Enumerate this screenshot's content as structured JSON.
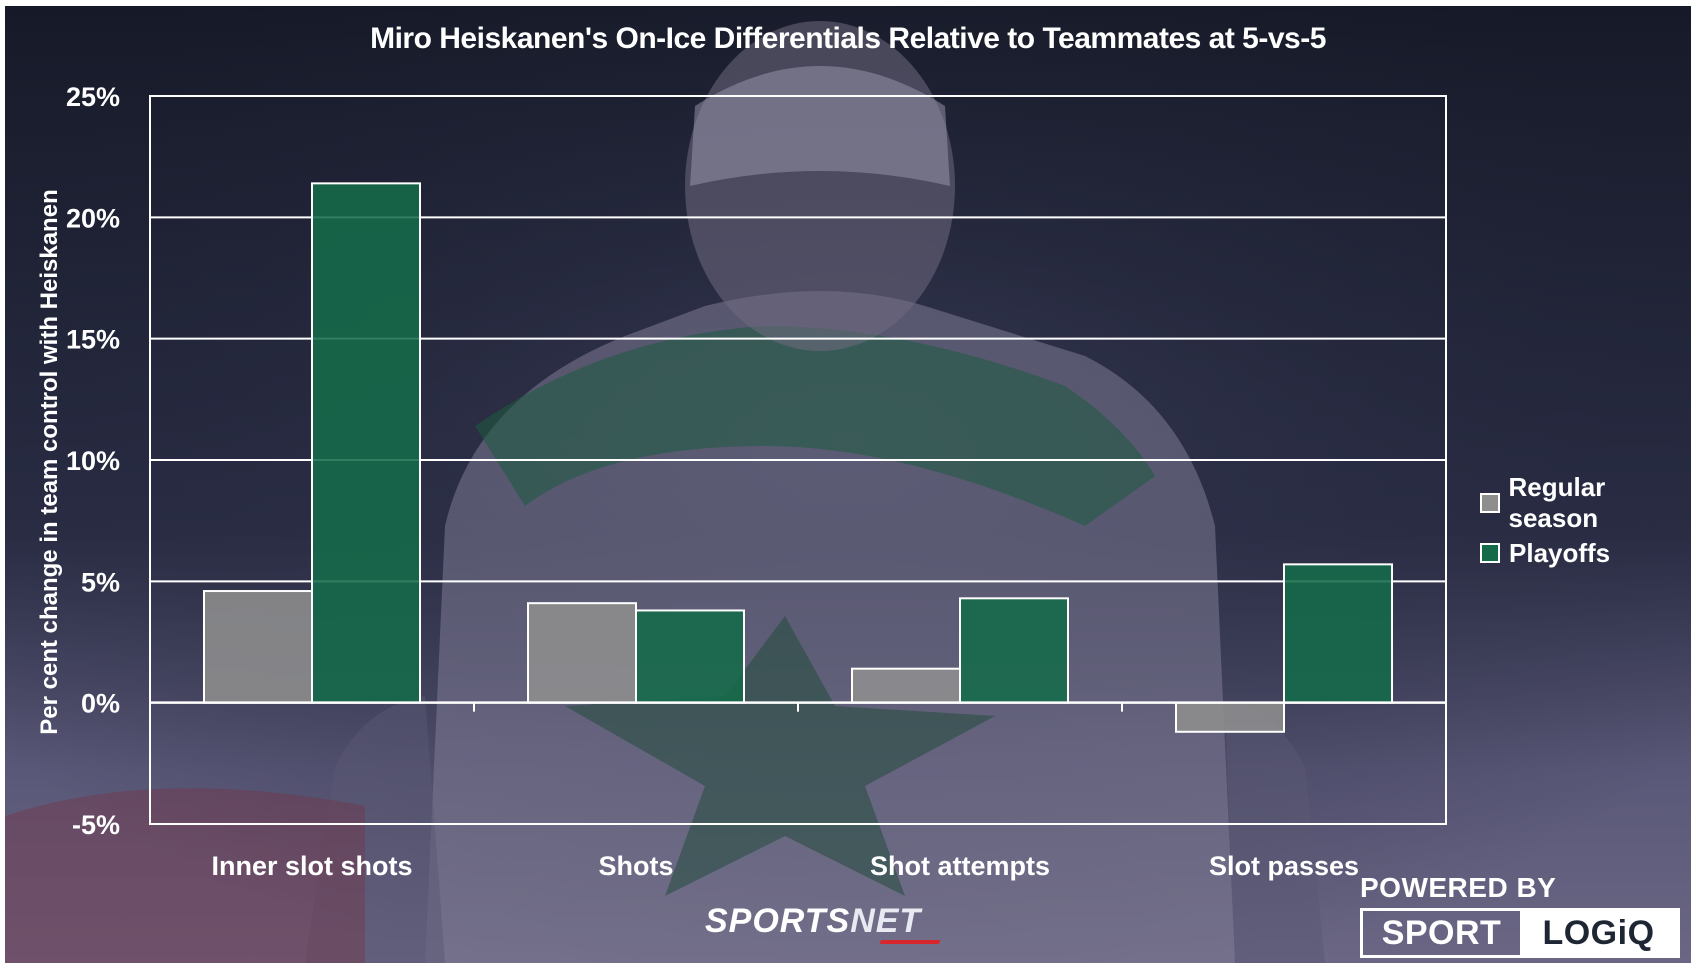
{
  "chart_data": {
    "type": "bar",
    "title": "Miro Heiskanen's On-Ice Differentials Relative to Teammates at 5-vs-5",
    "xlabel": "",
    "ylabel": "Per cent change in team control with Heiskanen",
    "categories": [
      "Inner slot shots",
      "Shots",
      "Shot attempts",
      "Slot passes"
    ],
    "series": [
      {
        "name": "Regular season",
        "values": [
          4.6,
          4.1,
          1.4,
          -1.2
        ]
      },
      {
        "name": "Playoffs",
        "values": [
          21.4,
          3.8,
          4.3,
          5.7
        ]
      }
    ],
    "ylim": [
      -5,
      25
    ],
    "yticks": [
      -5,
      0,
      5,
      10,
      15,
      20,
      25
    ],
    "ytick_labels": [
      "-5%",
      "0%",
      "5%",
      "10%",
      "15%",
      "20%",
      "25%"
    ],
    "grid": true,
    "legend_position": "right",
    "colors": {
      "Regular season": "#8e8e8e",
      "Playoffs": "#146b4a"
    }
  },
  "branding": {
    "sportsnet_main": "SPORTS",
    "sportsnet_net": "NET",
    "powered_by": "POWERED BY",
    "sport": "SPORT",
    "logiq": "LOGiQ"
  }
}
